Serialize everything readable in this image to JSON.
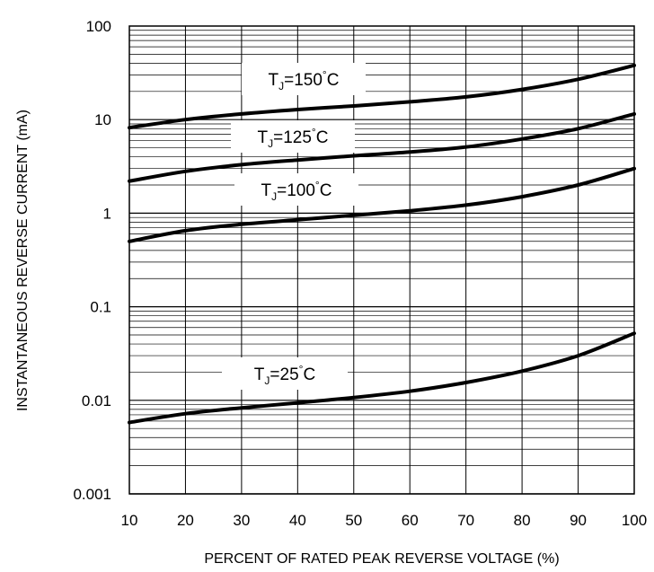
{
  "chart_data": {
    "type": "line",
    "title": "",
    "xlabel": "PERCENT OF RATED PEAK REVERSE VOLTAGE (%)",
    "ylabel": "INSTANTANEOUS REVERSE CURRENT (mA)",
    "xlim": [
      10,
      100
    ],
    "ylim": [
      0.001,
      100
    ],
    "y_scale": "log",
    "grid": true,
    "x_ticks": [
      10,
      20,
      30,
      40,
      50,
      60,
      70,
      80,
      90,
      100
    ],
    "x_tick_labels": [
      "10",
      "20",
      "30",
      "40",
      "50",
      "60",
      "70",
      "80",
      "90",
      "100"
    ],
    "y_ticks": [
      0.001,
      0.01,
      0.1,
      1,
      10,
      100
    ],
    "y_tick_labels": [
      "0.001",
      "0.01",
      "0.1",
      "1",
      "10",
      "100"
    ],
    "x": [
      10,
      20,
      30,
      40,
      50,
      60,
      70,
      80,
      90,
      100
    ],
    "series": [
      {
        "label_main": "T",
        "label_sub": "J",
        "label_rest": "=150",
        "label_deg": "°",
        "label_unit": "C",
        "values": [
          8.2,
          10.0,
          11.5,
          12.8,
          14.0,
          15.5,
          17.5,
          21.0,
          27.0,
          38.0
        ]
      },
      {
        "label_main": "T",
        "label_sub": "J",
        "label_rest": "=125",
        "label_deg": "°",
        "label_unit": "C",
        "values": [
          2.2,
          2.8,
          3.3,
          3.7,
          4.1,
          4.5,
          5.1,
          6.2,
          8.0,
          11.5
        ]
      },
      {
        "label_main": "T",
        "label_sub": "J",
        "label_rest": "=100",
        "label_deg": "°",
        "label_unit": "C",
        "values": [
          0.5,
          0.65,
          0.76,
          0.85,
          0.95,
          1.06,
          1.22,
          1.5,
          2.0,
          3.0
        ]
      },
      {
        "label_main": "T",
        "label_sub": "J",
        "label_rest": "=25",
        "label_deg": "°",
        "label_unit": "C",
        "values": [
          0.0058,
          0.0072,
          0.0083,
          0.0094,
          0.0107,
          0.0125,
          0.0155,
          0.0205,
          0.03,
          0.052
        ]
      }
    ]
  }
}
